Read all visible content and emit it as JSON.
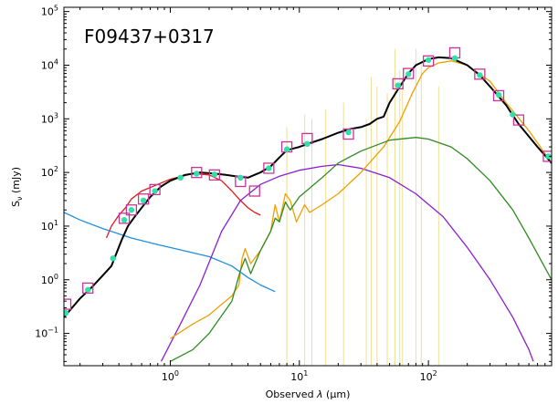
{
  "chart_data": {
    "type": "line",
    "title": "F09437+0317",
    "xlabel_prefix": "Observed ",
    "xlabel_symbol": "λ",
    "xlabel_suffix": " (μm)",
    "ylabel_main": "S",
    "ylabel_sub": "ν",
    "ylabel_suffix": " (mJy)",
    "xscale": "log",
    "yscale": "log",
    "xlim": [
      0.15,
      900
    ],
    "ylim": [
      0.025,
      120000
    ],
    "x_ticks": [
      {
        "value": 1,
        "base": "10",
        "exp": "0"
      },
      {
        "value": 10,
        "base": "10",
        "exp": "1"
      },
      {
        "value": 100,
        "base": "10",
        "exp": "2"
      }
    ],
    "y_ticks": [
      {
        "value": 0.1,
        "base": "10",
        "exp": "−1"
      },
      {
        "value": 1,
        "base": "10",
        "exp": "0"
      },
      {
        "value": 10,
        "base": "10",
        "exp": "1"
      },
      {
        "value": 100,
        "base": "10",
        "exp": "2"
      },
      {
        "value": 1000,
        "base": "10",
        "exp": "3"
      },
      {
        "value": 10000,
        "base": "10",
        "exp": "4"
      },
      {
        "value": 100000,
        "base": "10",
        "exp": "5"
      }
    ],
    "colors": {
      "total": "#000000",
      "stellar": "#e31a1c",
      "agn_blue": "#1f8fdd",
      "cold_dust": "#8a1ed3",
      "warm_dust": "#f0a000",
      "green_dust": "#2e8b22",
      "emission_lines": "#ede098",
      "observed": "#cc3399",
      "model_points": "#2fe0a8"
    },
    "series": [
      {
        "key": "stellar",
        "points": [
          [
            0.32,
            6
          ],
          [
            0.35,
            10
          ],
          [
            0.4,
            16
          ],
          [
            0.45,
            22
          ],
          [
            0.5,
            32
          ],
          [
            0.6,
            45
          ],
          [
            0.8,
            60
          ],
          [
            1.0,
            75
          ],
          [
            1.5,
            95
          ],
          [
            2.0,
            90
          ],
          [
            2.5,
            70
          ],
          [
            3.0,
            45
          ],
          [
            3.5,
            30
          ],
          [
            4.0,
            22
          ],
          [
            4.5,
            18
          ],
          [
            5.0,
            16
          ]
        ]
      },
      {
        "key": "agn_blue",
        "points": [
          [
            0.15,
            18
          ],
          [
            0.2,
            13
          ],
          [
            0.3,
            9
          ],
          [
            0.5,
            6
          ],
          [
            0.8,
            4.5
          ],
          [
            1.2,
            3.6
          ],
          [
            2.0,
            2.7
          ],
          [
            3.0,
            1.8
          ],
          [
            4.0,
            1.1
          ],
          [
            5.0,
            0.8
          ],
          [
            6.5,
            0.6
          ]
        ]
      },
      {
        "key": "cold_dust",
        "points": [
          [
            0.85,
            0.03
          ],
          [
            1.2,
            0.15
          ],
          [
            1.7,
            0.8
          ],
          [
            2.5,
            8
          ],
          [
            3.5,
            30
          ],
          [
            5,
            60
          ],
          [
            7,
            85
          ],
          [
            10,
            110
          ],
          [
            15,
            130
          ],
          [
            20,
            140
          ],
          [
            30,
            120
          ],
          [
            50,
            80
          ],
          [
            80,
            40
          ],
          [
            130,
            15
          ],
          [
            200,
            4
          ],
          [
            300,
            1
          ],
          [
            450,
            0.2
          ],
          [
            600,
            0.05
          ],
          [
            650,
            0.03
          ]
        ]
      },
      {
        "key": "warm_dust",
        "points": [
          [
            1.0,
            0.08
          ],
          [
            1.5,
            0.15
          ],
          [
            2.0,
            0.22
          ],
          [
            2.5,
            0.35
          ],
          [
            3.0,
            0.5
          ],
          [
            3.4,
            0.8
          ],
          [
            3.6,
            2.5
          ],
          [
            3.8,
            3.8
          ],
          [
            4.2,
            2.0
          ],
          [
            5.0,
            3.5
          ],
          [
            6.0,
            8
          ],
          [
            6.5,
            25
          ],
          [
            7.0,
            12
          ],
          [
            7.8,
            40
          ],
          [
            8.5,
            30
          ],
          [
            9.5,
            12
          ],
          [
            11,
            25
          ],
          [
            12,
            18
          ],
          [
            15,
            25
          ],
          [
            20,
            40
          ],
          [
            30,
            100
          ],
          [
            45,
            300
          ],
          [
            60,
            900
          ],
          [
            75,
            3000
          ],
          [
            90,
            7000
          ],
          [
            100,
            9000
          ],
          [
            120,
            11000
          ],
          [
            150,
            12000
          ],
          [
            200,
            10000
          ],
          [
            300,
            5000
          ],
          [
            400,
            2000
          ],
          [
            600,
            600
          ],
          [
            900,
            150
          ]
        ]
      },
      {
        "key": "green_dust",
        "points": [
          [
            1.0,
            0.03
          ],
          [
            1.5,
            0.05
          ],
          [
            2.0,
            0.1
          ],
          [
            3.0,
            0.4
          ],
          [
            3.5,
            1.5
          ],
          [
            3.8,
            2.5
          ],
          [
            4.2,
            1.3
          ],
          [
            5.0,
            3.5
          ],
          [
            6.0,
            8
          ],
          [
            6.5,
            14
          ],
          [
            7.0,
            12
          ],
          [
            7.8,
            28
          ],
          [
            8.5,
            20
          ],
          [
            10,
            35
          ],
          [
            15,
            80
          ],
          [
            20,
            150
          ],
          [
            30,
            250
          ],
          [
            50,
            400
          ],
          [
            80,
            450
          ],
          [
            100,
            420
          ],
          [
            150,
            300
          ],
          [
            200,
            180
          ],
          [
            300,
            70
          ],
          [
            450,
            20
          ],
          [
            600,
            6
          ],
          [
            900,
            1
          ]
        ]
      },
      {
        "key": "total",
        "points": [
          [
            0.15,
            0.2
          ],
          [
            0.2,
            0.45
          ],
          [
            0.25,
            0.75
          ],
          [
            0.3,
            1.2
          ],
          [
            0.35,
            1.8
          ],
          [
            0.38,
            3
          ],
          [
            0.42,
            5.5
          ],
          [
            0.47,
            10
          ],
          [
            0.52,
            14
          ],
          [
            0.6,
            22
          ],
          [
            0.7,
            35
          ],
          [
            0.85,
            55
          ],
          [
            1.0,
            70
          ],
          [
            1.3,
            90
          ],
          [
            1.7,
            100
          ],
          [
            2.2,
            95
          ],
          [
            2.7,
            90
          ],
          [
            3.2,
            85
          ],
          [
            4.0,
            80
          ],
          [
            5.0,
            100
          ],
          [
            6.0,
            130
          ],
          [
            7.0,
            190
          ],
          [
            8.0,
            260
          ],
          [
            9.0,
            280
          ],
          [
            10,
            300
          ],
          [
            12,
            350
          ],
          [
            15,
            420
          ],
          [
            20,
            550
          ],
          [
            25,
            650
          ],
          [
            30,
            700
          ],
          [
            35,
            800
          ],
          [
            40,
            1000
          ],
          [
            45,
            1100
          ],
          [
            50,
            2000
          ],
          [
            60,
            4000
          ],
          [
            70,
            7000
          ],
          [
            80,
            10000
          ],
          [
            100,
            13000
          ],
          [
            120,
            14000
          ],
          [
            150,
            13500
          ],
          [
            200,
            10000
          ],
          [
            250,
            6500
          ],
          [
            300,
            4000
          ],
          [
            400,
            1800
          ],
          [
            500,
            800
          ],
          [
            700,
            300
          ],
          [
            900,
            150
          ]
        ]
      }
    ],
    "emission_lines": [
      {
        "x": 8.0,
        "top": 700
      },
      {
        "x": 11.0,
        "top": 1200
      },
      {
        "x": 12.5,
        "top": 1000
      },
      {
        "x": 16,
        "top": 1500
      },
      {
        "x": 22,
        "top": 2000
      },
      {
        "x": 33,
        "top": 1000
      },
      {
        "x": 36,
        "top": 6000
      },
      {
        "x": 40,
        "top": 4000
      },
      {
        "x": 48,
        "top": 3000
      },
      {
        "x": 55,
        "top": 20000
      },
      {
        "x": 60,
        "top": 8000
      },
      {
        "x": 63,
        "top": 4000
      },
      {
        "x": 80,
        "top": 20000
      },
      {
        "x": 88,
        "top": 12000
      },
      {
        "x": 120,
        "top": 4000
      }
    ],
    "observed": [
      {
        "x": 0.155,
        "y": 0.35
      },
      {
        "x": 0.23,
        "y": 0.7
      },
      {
        "x": 0.44,
        "y": 14
      },
      {
        "x": 0.5,
        "y": 20
      },
      {
        "x": 0.62,
        "y": 32
      },
      {
        "x": 0.76,
        "y": 48
      },
      {
        "x": 1.6,
        "y": 100
      },
      {
        "x": 2.2,
        "y": 90
      },
      {
        "x": 3.5,
        "y": 68
      },
      {
        "x": 4.5,
        "y": 45
      },
      {
        "x": 5.8,
        "y": 120
      },
      {
        "x": 8.0,
        "y": 300
      },
      {
        "x": 11.5,
        "y": 430
      },
      {
        "x": 24,
        "y": 520
      },
      {
        "x": 58,
        "y": 4500
      },
      {
        "x": 70,
        "y": 7000
      },
      {
        "x": 100,
        "y": 12000
      },
      {
        "x": 160,
        "y": 17000
      },
      {
        "x": 250,
        "y": 6800
      },
      {
        "x": 350,
        "y": 2700
      },
      {
        "x": 500,
        "y": 950
      },
      {
        "x": 850,
        "y": 200
      }
    ],
    "model_points": [
      {
        "x": 0.155,
        "y": 0.24
      },
      {
        "x": 0.23,
        "y": 0.65
      },
      {
        "x": 0.36,
        "y": 2.5
      },
      {
        "x": 0.44,
        "y": 13
      },
      {
        "x": 0.5,
        "y": 20
      },
      {
        "x": 0.62,
        "y": 30
      },
      {
        "x": 0.76,
        "y": 45
      },
      {
        "x": 1.2,
        "y": 80
      },
      {
        "x": 1.6,
        "y": 95
      },
      {
        "x": 2.2,
        "y": 92
      },
      {
        "x": 3.5,
        "y": 80
      },
      {
        "x": 5.8,
        "y": 120
      },
      {
        "x": 8.0,
        "y": 270
      },
      {
        "x": 11.5,
        "y": 340
      },
      {
        "x": 24,
        "y": 560
      },
      {
        "x": 58,
        "y": 4200
      },
      {
        "x": 70,
        "y": 6800
      },
      {
        "x": 100,
        "y": 12500
      },
      {
        "x": 160,
        "y": 13500
      },
      {
        "x": 250,
        "y": 6500
      },
      {
        "x": 350,
        "y": 2800
      },
      {
        "x": 450,
        "y": 1200
      },
      {
        "x": 850,
        "y": 200
      }
    ]
  }
}
